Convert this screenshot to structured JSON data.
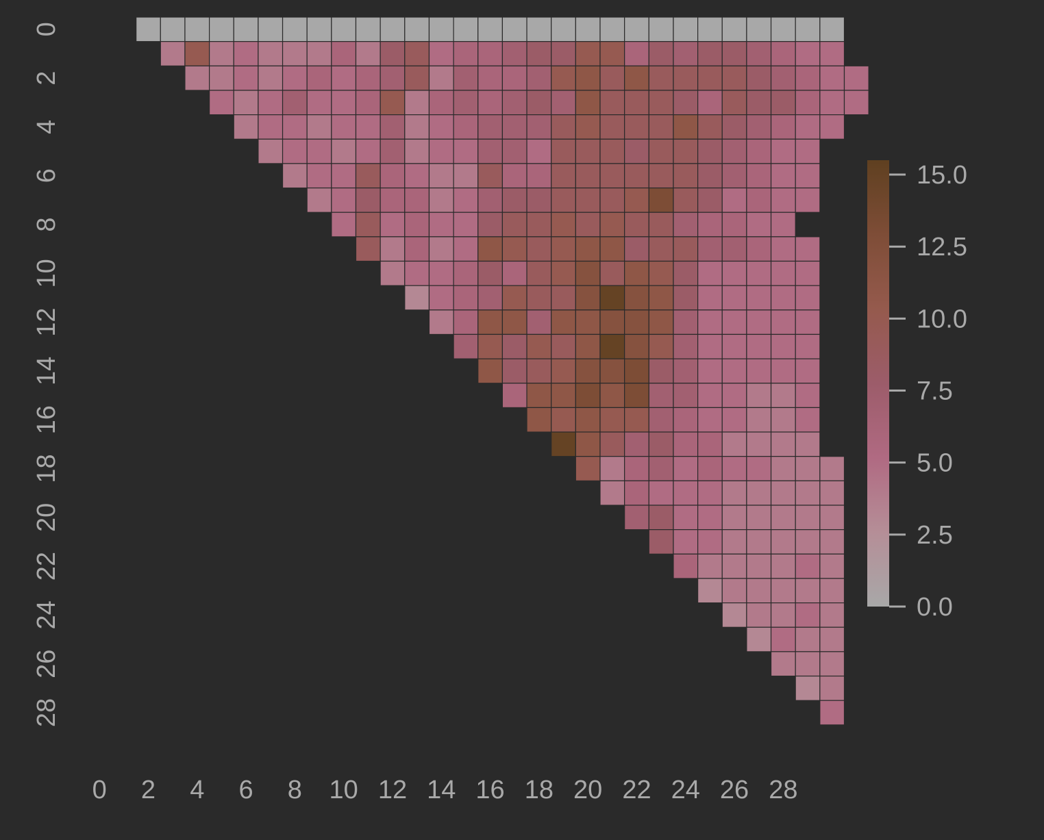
{
  "chart_data": {
    "type": "heatmap",
    "title": "",
    "xlabel": "",
    "ylabel": "",
    "mask": "upper-triangle (j > i)",
    "x_tick_labels": [
      "0",
      "2",
      "4",
      "6",
      "8",
      "10",
      "12",
      "14",
      "16",
      "18",
      "20",
      "22",
      "24",
      "26",
      "28"
    ],
    "y_tick_labels": [
      "0",
      "2",
      "4",
      "6",
      "8",
      "10",
      "12",
      "14",
      "16",
      "18",
      "20",
      "22",
      "24",
      "26",
      "28"
    ],
    "colorbar": {
      "ticks": [
        "0.0",
        "2.5",
        "5.0",
        "7.5",
        "10.0",
        "12.5",
        "15.0"
      ],
      "range": [
        0,
        15.5
      ],
      "colors": [
        "#a8a8a8",
        "#b58e97",
        "#b06a82",
        "#9c5c6a",
        "#955a4d",
        "#7e4d37",
        "#5f4020"
      ]
    },
    "values": [
      [
        0,
        0,
        0,
        0,
        0,
        0,
        0,
        0,
        0,
        0,
        0,
        0,
        0,
        0,
        0,
        0,
        0,
        0,
        0,
        0,
        0,
        0,
        0,
        0,
        0,
        0,
        0,
        0,
        0
      ],
      [
        4,
        10,
        4,
        5,
        4,
        4,
        4,
        6,
        4,
        8,
        9,
        5,
        6,
        6,
        7,
        8,
        8,
        10,
        10,
        6,
        8,
        7,
        8,
        8,
        7,
        6,
        5,
        5
      ],
      [
        4,
        4,
        5,
        4,
        5,
        6,
        5,
        6,
        7,
        9,
        4,
        7,
        6,
        6,
        7,
        10,
        11,
        9,
        11,
        9,
        9,
        9,
        9,
        8,
        7,
        6,
        5,
        5
      ],
      [
        5,
        4,
        5,
        7,
        5,
        5,
        6,
        10,
        4,
        6,
        7,
        6,
        7,
        8,
        7,
        11,
        9,
        9,
        9,
        8,
        6,
        9,
        8,
        8,
        6,
        5,
        5
      ],
      [
        4,
        5,
        5,
        4,
        5,
        5,
        7,
        4,
        5,
        6,
        7,
        7,
        7,
        9,
        10,
        9,
        9,
        9,
        11,
        9,
        8,
        7,
        6,
        5,
        5
      ],
      [
        4,
        5,
        5,
        4,
        5,
        7,
        4,
        5,
        5,
        7,
        7,
        5,
        9,
        9,
        9,
        8,
        9,
        9,
        8,
        7,
        6,
        5,
        5
      ],
      [
        4,
        5,
        5,
        9,
        6,
        5,
        4,
        4,
        9,
        6,
        6,
        9,
        9,
        9,
        9,
        9,
        9,
        8,
        7,
        6,
        5,
        5
      ],
      [
        4,
        5,
        8,
        6,
        6,
        4,
        5,
        7,
        8,
        8,
        9,
        9,
        9,
        10,
        13,
        9,
        8,
        5,
        6,
        5,
        5
      ],
      [
        5,
        9,
        5,
        6,
        5,
        5,
        8,
        9,
        9,
        10,
        9,
        10,
        9,
        9,
        7,
        6,
        6,
        5,
        5
      ],
      [
        9,
        4,
        6,
        4,
        5,
        11,
        10,
        9,
        10,
        11,
        11,
        8,
        9,
        9,
        7,
        7,
        6,
        5,
        5
      ],
      [
        4,
        5,
        5,
        6,
        8,
        6,
        9,
        10,
        12,
        9,
        11,
        10,
        8,
        5,
        5,
        5,
        5,
        5
      ],
      [
        3,
        5,
        6,
        7,
        10,
        9,
        9,
        12,
        15,
        12,
        11,
        8,
        5,
        5,
        5,
        5,
        5
      ],
      [
        4,
        6,
        11,
        11,
        7,
        11,
        11,
        12,
        12,
        11,
        7,
        5,
        5,
        5,
        5,
        5
      ],
      [
        7,
        10,
        8,
        10,
        9,
        11,
        15,
        12,
        10,
        7,
        5,
        5,
        5,
        5,
        5
      ],
      [
        11,
        8,
        9,
        10,
        12,
        12,
        13,
        8,
        7,
        5,
        5,
        5,
        5,
        5
      ],
      [
        6,
        11,
        11,
        13,
        11,
        13,
        7,
        7,
        5,
        5,
        4,
        4,
        5
      ],
      [
        11,
        10,
        11,
        10,
        10,
        7,
        6,
        5,
        5,
        4,
        4,
        5
      ],
      [
        15,
        11,
        9,
        7,
        8,
        6,
        6,
        4,
        4,
        4,
        4
      ],
      [
        10,
        4,
        6,
        7,
        5,
        6,
        5,
        5,
        4,
        4,
        4
      ],
      [
        4,
        6,
        5,
        5,
        5,
        4,
        4,
        4,
        4,
        4
      ],
      [
        7,
        8,
        5,
        5,
        4,
        4,
        4,
        4,
        4
      ],
      [
        8,
        5,
        5,
        4,
        4,
        4,
        4,
        4
      ],
      [
        6,
        4,
        4,
        4,
        4,
        5,
        4
      ],
      [
        3,
        4,
        4,
        4,
        4,
        4
      ],
      [
        3,
        4,
        4,
        5,
        4
      ],
      [
        3,
        5,
        4,
        4
      ],
      [
        4,
        4,
        4
      ],
      [
        3,
        4
      ],
      [
        5
      ]
    ]
  }
}
